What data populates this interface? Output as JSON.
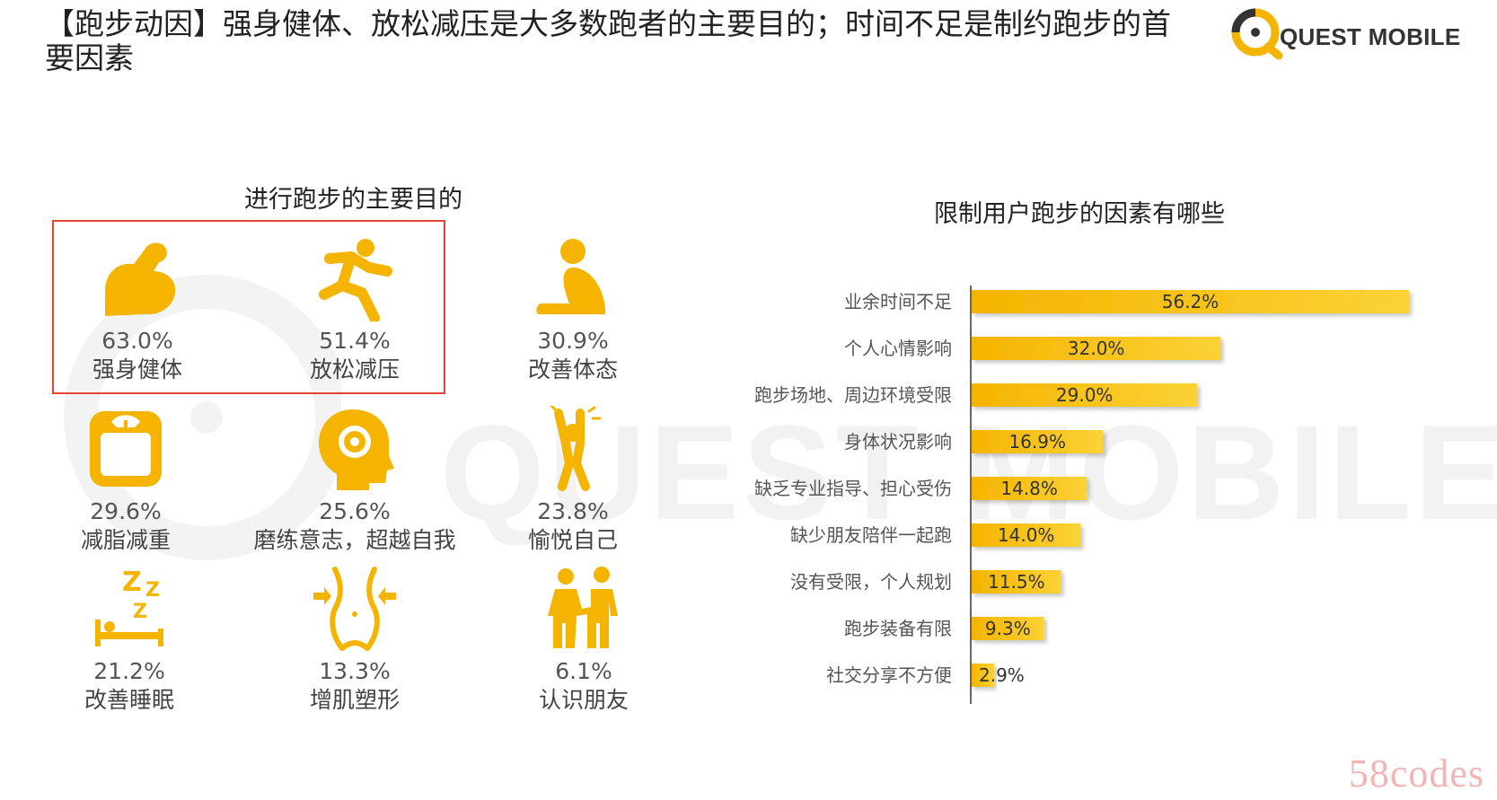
{
  "page": {
    "title": "【跑步动因】强身健体、放松减压是大多数跑者的主要目的；时间不足是制约跑步的首要因素"
  },
  "brand": {
    "name": "QUEST MOBILE",
    "accent": "#F5B400",
    "highlight_border": "#E4472F"
  },
  "purposes": {
    "title": "进行跑步的主要目的",
    "items": [
      {
        "pct": "63.0%",
        "label": "强身健体",
        "icon": "flexed-arm-icon",
        "highlighted": true
      },
      {
        "pct": "51.4%",
        "label": "放松减压",
        "icon": "running-person-icon",
        "highlighted": true
      },
      {
        "pct": "30.9%",
        "label": "改善体态",
        "icon": "stretching-person-icon"
      },
      {
        "pct": "29.6%",
        "label": "减脂减重",
        "icon": "weight-scale-icon"
      },
      {
        "pct": "25.6%",
        "label": "磨练意志，超越自我",
        "icon": "head-gear-icon"
      },
      {
        "pct": "23.8%",
        "label": "愉悦自己",
        "icon": "cheering-person-icon"
      },
      {
        "pct": "21.2%",
        "label": "改善睡眠",
        "icon": "sleeping-bed-icon"
      },
      {
        "pct": "13.3%",
        "label": "增肌塑形",
        "icon": "waist-shaping-icon"
      },
      {
        "pct": "6.1%",
        "label": "认识朋友",
        "icon": "two-friends-icon"
      }
    ]
  },
  "chart_data": {
    "type": "bar",
    "orientation": "horizontal",
    "title": "限制用户跑步的因素有哪些",
    "categories": [
      "业余时间不足",
      "个人心情影响",
      "跑步场地、周边环境受限",
      "身体状况影响",
      "缺乏专业指导、担心受伤",
      "缺少朋友陪伴一起跑",
      "没有受限，个人规划",
      "跑步装备有限",
      "社交分享不方便"
    ],
    "values": [
      56.2,
      32.0,
      29.0,
      16.9,
      14.8,
      14.0,
      11.5,
      9.3,
      2.9
    ],
    "value_labels": [
      "56.2%",
      "32.0%",
      "29.0%",
      "16.9%",
      "14.8%",
      "14.0%",
      "11.5%",
      "9.3%",
      "2.9%"
    ],
    "unit": "%",
    "xlim": [
      0,
      60
    ],
    "grid": false,
    "bar_color": "#F5B400"
  },
  "footer": {
    "site_mark": "58codes"
  }
}
